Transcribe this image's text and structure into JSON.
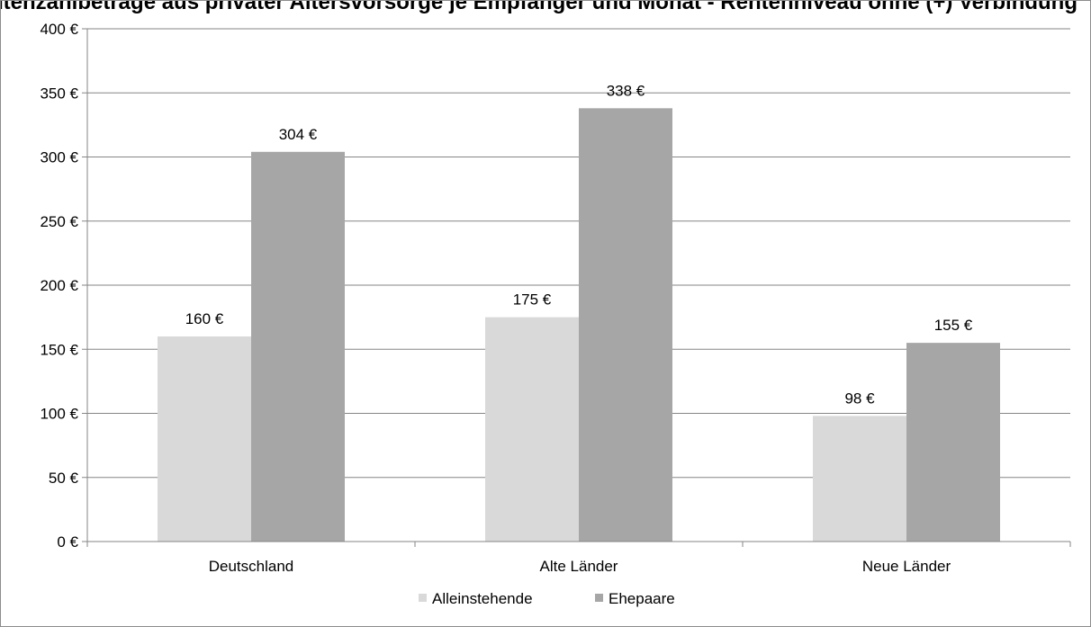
{
  "chart_data": {
    "type": "bar",
    "title": "Rentenzahlbeträge aus privater Altersvorsorge je Empfänger und Monat - Rentenniveau ohne (+) Verbindung",
    "categories": [
      "Deutschland",
      "Alte Länder",
      "Neue Länder"
    ],
    "series": [
      {
        "name": "Alleinstehende",
        "values": [
          160,
          175,
          98
        ],
        "labels": [
          "160 €",
          "175 €",
          "98 €"
        ],
        "color": "#d9d9d9"
      },
      {
        "name": "Ehepaare",
        "values": [
          304,
          338,
          155
        ],
        "labels": [
          "304 €",
          "338 €",
          "155 €"
        ],
        "color": "#a6a6a6"
      }
    ],
    "y_ticks": [
      {
        "value": 0,
        "label": "0 €"
      },
      {
        "value": 50,
        "label": "50 €"
      },
      {
        "value": 100,
        "label": "100 €"
      },
      {
        "value": 150,
        "label": "150 €"
      },
      {
        "value": 200,
        "label": "200 €"
      },
      {
        "value": 250,
        "label": "250 €"
      },
      {
        "value": 300,
        "label": "300 €"
      },
      {
        "value": 350,
        "label": "350 €"
      },
      {
        "value": 400,
        "label": "400 €"
      }
    ],
    "ylim": [
      0,
      400
    ],
    "grid": true,
    "legend_position": "bottom",
    "gridline_color": "#868686",
    "axis_color": "#868686"
  }
}
